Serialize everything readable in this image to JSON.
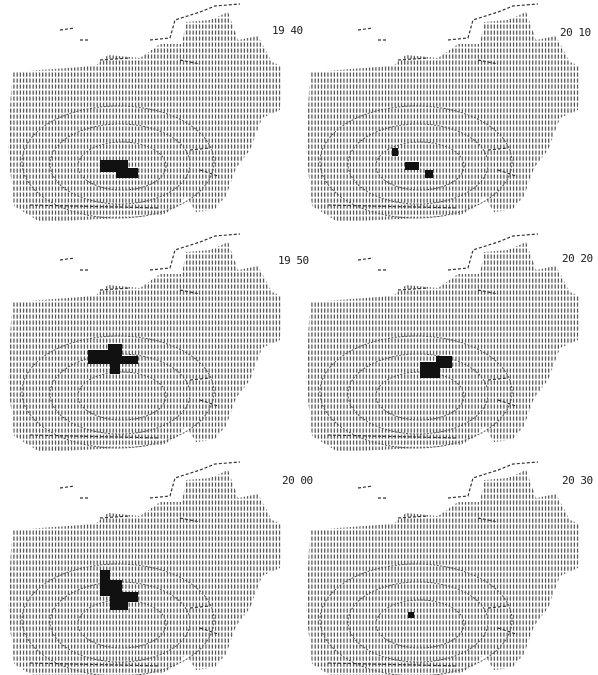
{
  "panels": [
    {
      "time": "19 40"
    },
    {
      "time": "19 50"
    },
    {
      "time": "20 00"
    },
    {
      "time": "20 10"
    },
    {
      "time": "20 20"
    },
    {
      "time": "20 30"
    }
  ]
}
